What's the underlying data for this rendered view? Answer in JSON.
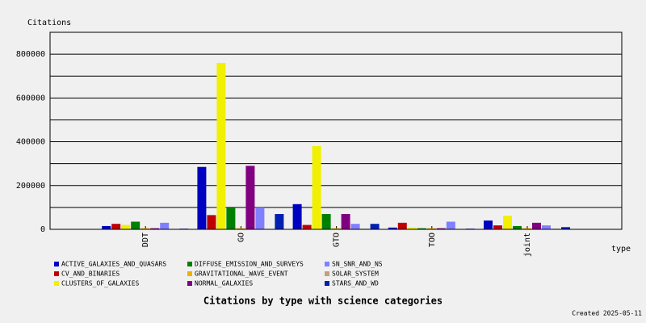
{
  "chart_data": {
    "type": "bar",
    "title": "Citations by type with science categories",
    "ylabel": "Citations",
    "xlabel": "type",
    "footnote": "Created 2025-05-11",
    "categories": [
      "DDT",
      "GO",
      "GTO",
      "TOO",
      "joint"
    ],
    "series": [
      {
        "name": "ACTIVE_GALAXIES_AND_QUASARS",
        "color": "#0000c0",
        "values": [
          15000,
          285000,
          115000,
          8000,
          40000
        ]
      },
      {
        "name": "CV_AND_BINARIES",
        "color": "#c00000",
        "values": [
          25000,
          65000,
          20000,
          30000,
          18000
        ]
      },
      {
        "name": "CLUSTERS_OF_GALAXIES",
        "color": "#f0f000",
        "values": [
          20000,
          760000,
          380000,
          8000,
          62000
        ]
      },
      {
        "name": "DIFFUSE_EMISSION_AND_SURVEYS",
        "color": "#008000",
        "values": [
          35000,
          100000,
          70000,
          5000,
          15000
        ]
      },
      {
        "name": "GRAVITATIONAL_WAVE_EVENT",
        "color": "#f0b000",
        "values": [
          5000,
          5000,
          5000,
          5000,
          5000
        ]
      },
      {
        "name": "NORMAL_GALAXIES",
        "color": "#800080",
        "values": [
          5000,
          290000,
          70000,
          5000,
          30000
        ]
      },
      {
        "name": "SN_SNR_AND_NS",
        "color": "#8080ff",
        "values": [
          30000,
          100000,
          25000,
          35000,
          18000
        ]
      },
      {
        "name": "SOLAR_SYSTEM",
        "color": "#c0a080",
        "values": [
          2000,
          2000,
          3000,
          2000,
          3000
        ]
      },
      {
        "name": "STARS_AND_WD",
        "color": "#0020b0",
        "values": [
          3000,
          70000,
          25000,
          3000,
          10000
        ]
      }
    ],
    "ylim": [
      0,
      900000
    ],
    "yticks": [
      0,
      200000,
      400000,
      600000,
      800000
    ],
    "grid": true
  }
}
